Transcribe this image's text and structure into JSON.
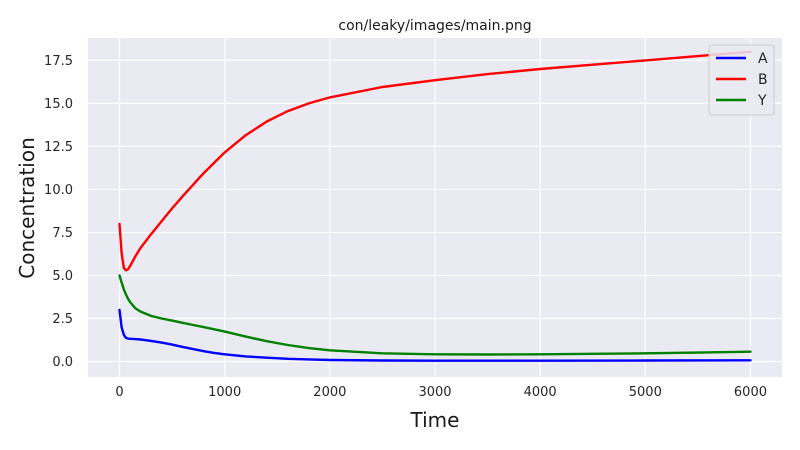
{
  "chart_data": {
    "type": "line",
    "title": "con/leaky/images/main.png",
    "xlabel": "Time",
    "ylabel": "Concentration",
    "xlim": [
      -300,
      6300
    ],
    "ylim": [
      -0.9,
      18.8
    ],
    "xticks": [
      0,
      1000,
      2000,
      3000,
      4000,
      5000,
      6000
    ],
    "xtick_labels": [
      "0",
      "1000",
      "2000",
      "3000",
      "4000",
      "5000",
      "6000"
    ],
    "yticks": [
      0.0,
      2.5,
      5.0,
      7.5,
      10.0,
      12.5,
      15.0,
      17.5
    ],
    "ytick_labels": [
      "0.0",
      "2.5",
      "5.0",
      "7.5",
      "10.0",
      "12.5",
      "15.0",
      "17.5"
    ],
    "grid": true,
    "legend_position": "top-right",
    "series": [
      {
        "name": "A",
        "color": "#0000ff",
        "x": [
          0,
          20,
          40,
          60,
          80,
          100,
          150,
          200,
          300,
          400,
          500,
          600,
          700,
          800,
          900,
          1000,
          1200,
          1400,
          1600,
          1800,
          2000,
          2500,
          3000,
          4000,
          5000,
          6000
        ],
        "y": [
          3.0,
          2.0,
          1.55,
          1.38,
          1.33,
          1.32,
          1.3,
          1.28,
          1.2,
          1.1,
          0.98,
          0.85,
          0.72,
          0.6,
          0.5,
          0.42,
          0.3,
          0.22,
          0.16,
          0.12,
          0.09,
          0.06,
          0.05,
          0.05,
          0.06,
          0.07
        ]
      },
      {
        "name": "B",
        "color": "#ff0000",
        "x": [
          0,
          20,
          40,
          60,
          80,
          100,
          150,
          200,
          300,
          400,
          500,
          600,
          800,
          1000,
          1200,
          1400,
          1600,
          1800,
          2000,
          2500,
          3000,
          3500,
          4000,
          4500,
          5000,
          5500,
          6000
        ],
        "y": [
          8.0,
          6.3,
          5.45,
          5.3,
          5.35,
          5.55,
          6.1,
          6.6,
          7.4,
          8.15,
          8.9,
          9.6,
          10.95,
          12.15,
          13.15,
          13.95,
          14.55,
          15.0,
          15.35,
          15.95,
          16.35,
          16.7,
          17.0,
          17.25,
          17.5,
          17.75,
          18.0
        ]
      },
      {
        "name": "Y",
        "color": "#008000",
        "x": [
          0,
          20,
          40,
          60,
          80,
          100,
          150,
          200,
          300,
          400,
          500,
          600,
          700,
          800,
          900,
          1000,
          1200,
          1400,
          1600,
          1800,
          2000,
          2500,
          3000,
          3500,
          4000,
          4500,
          5000,
          5500,
          6000
        ],
        "y": [
          5.0,
          4.6,
          4.2,
          3.9,
          3.65,
          3.45,
          3.1,
          2.9,
          2.65,
          2.5,
          2.38,
          2.25,
          2.12,
          2.0,
          1.87,
          1.74,
          1.45,
          1.18,
          0.96,
          0.78,
          0.65,
          0.48,
          0.42,
          0.41,
          0.42,
          0.45,
          0.48,
          0.52,
          0.57
        ]
      }
    ]
  }
}
